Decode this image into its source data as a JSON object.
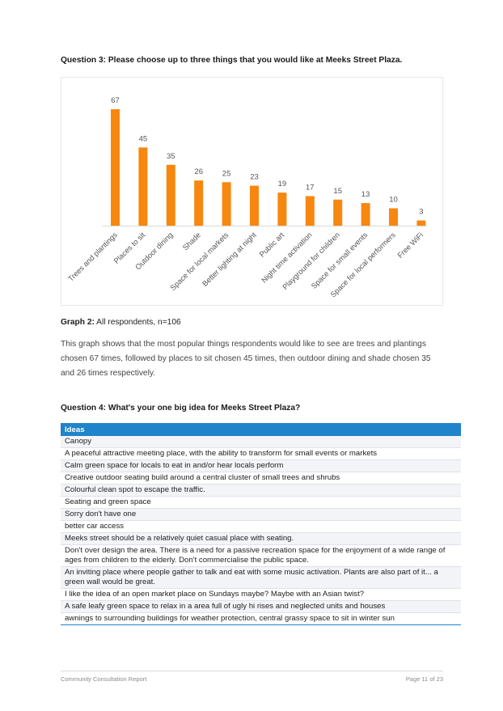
{
  "question3": {
    "title": "Question 3: Please choose up to three things that you would like at Meeks Street Plaza."
  },
  "chart_data": {
    "type": "bar",
    "categories": [
      "Trees and plantings",
      "Places to sit",
      "Outdoor dining",
      "Shade",
      "Space for local markets",
      "Better lighting at night",
      "Public art",
      "Night time activation",
      "Playground for children",
      "Space for small events",
      "Space for local performers",
      "Free WiFi"
    ],
    "values": [
      67,
      45,
      35,
      26,
      25,
      23,
      19,
      17,
      15,
      13,
      10,
      3
    ],
    "ylim": [
      0,
      67
    ],
    "grid": false,
    "bar_color": "#f7870f",
    "axis_color": "#d9d9d9",
    "label_color": "#555555"
  },
  "graph_caption": {
    "label": "Graph 2:",
    "text": " All respondents, n=106"
  },
  "paragraph": "This graph shows that the most popular things respondents would like to see are trees and plantings chosen 67 times, followed by places to sit chosen 45 times, then outdoor dining and shade chosen 35 and 26 times respectively.",
  "question4": {
    "title": "Question 4: What's your one big idea for Meeks Street Plaza?",
    "table_header": "Ideas",
    "rows": [
      "Canopy",
      "A peaceful attractive meeting place, with the ability to transform for small events or markets",
      "Calm green space for locals to eat in and/or hear locals perform",
      "Creative outdoor seating build around a central cluster of small trees and shrubs",
      "Colourful clean spot to escape the traffic.",
      "Seating and green space",
      "Sorry don't have one",
      "better car access",
      "Meeks street should be a relatively quiet casual place with seating.",
      "Don't over design the area. There is a need for a passive recreation space for the enjoyment of a wide range of ages from children to the elderly. Don't commercialise the public space.",
      "An inviting place where people gather to talk and eat with some music activation. Plants are also part of it... a green wall would be great.",
      "I like the idea of an open market place on Sundays maybe? Maybe with an Asian twist?",
      "A safe leafy green space to relax in a area full of ugly hi rises and neglected units and houses",
      "awnings to surrounding buildings for weather protection, central grassy space to sit in winter sun"
    ]
  },
  "footer": {
    "left": "Community Consultation Report",
    "right": "Page 11 of 23"
  }
}
